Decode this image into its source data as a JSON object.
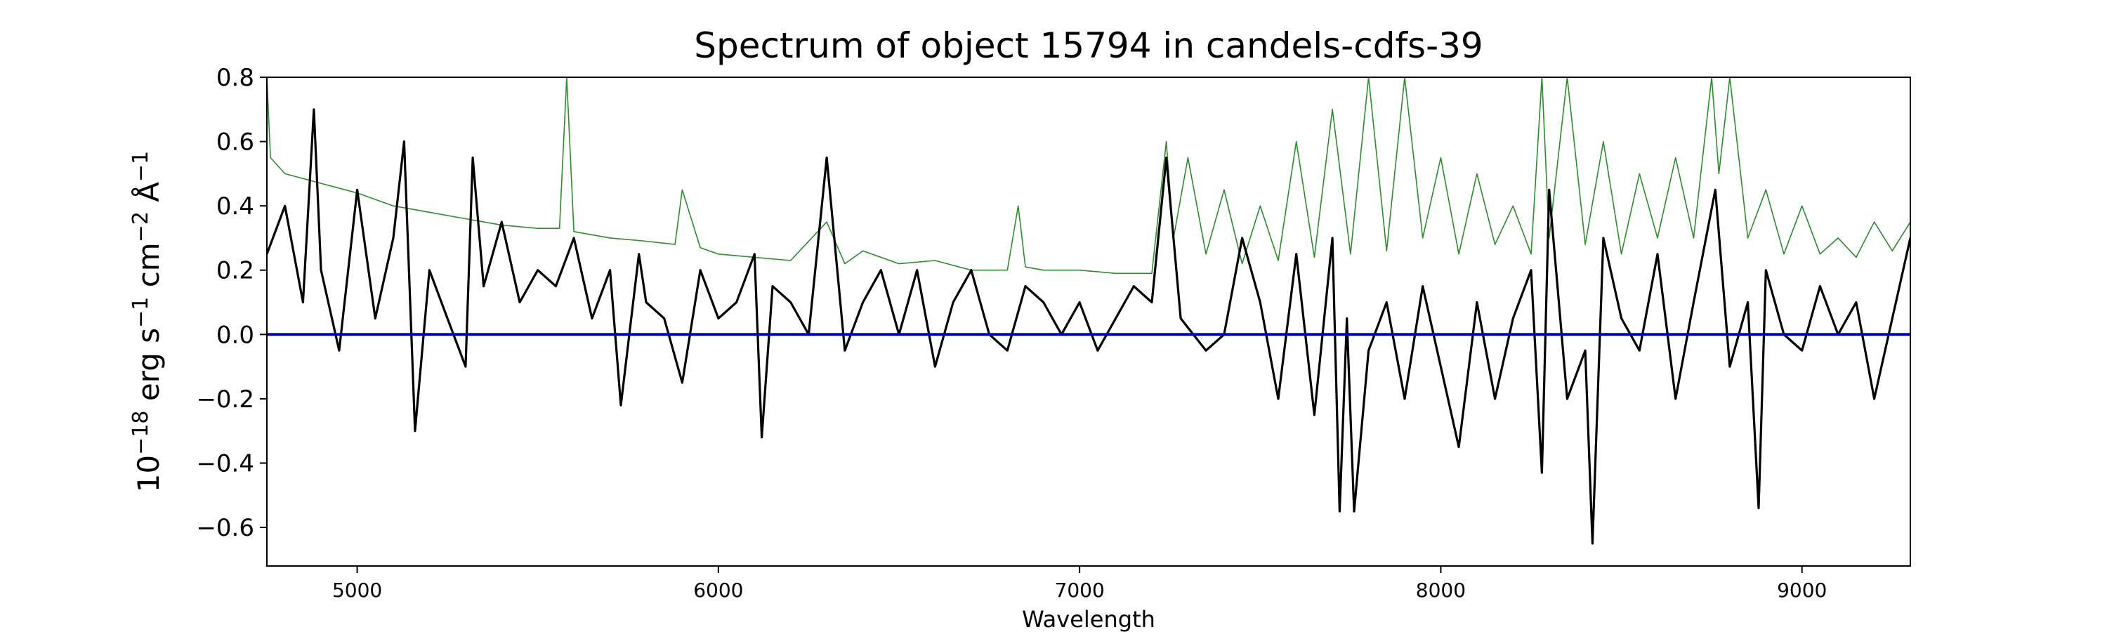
{
  "chart_data": {
    "type": "line",
    "title": "Spectrum of object 15794 in candels-cdfs-39",
    "xlabel": "Wavelength",
    "ylabel": {
      "base": "10",
      "base_exp": "−18",
      "erg": " erg s",
      "s_exp": "−1",
      "cm": " cm",
      "cm_exp": "−2",
      "ang": " Å",
      "ang_exp": "−1"
    },
    "xlim": [
      4750,
      9300
    ],
    "ylim": [
      -0.72,
      0.8
    ],
    "xticks": [
      5000,
      6000,
      7000,
      8000,
      9000
    ],
    "xtick_labels": [
      "5000",
      "6000",
      "7000",
      "8000",
      "9000"
    ],
    "yticks": [
      -0.6,
      -0.4,
      -0.2,
      0.0,
      0.2,
      0.4,
      0.6,
      0.8
    ],
    "ytick_labels": [
      "−0.6",
      "−0.4",
      "−0.2",
      "0.0",
      "0.2",
      "0.4",
      "0.6",
      "0.8"
    ],
    "grid": false,
    "legend": "none",
    "series": [
      {
        "role": "flux",
        "color": "#000000",
        "x": [
          4750,
          4800,
          4850,
          4880,
          4900,
          4950,
          5000,
          5050,
          5100,
          5130,
          5160,
          5200,
          5250,
          5300,
          5320,
          5350,
          5400,
          5450,
          5500,
          5550,
          5600,
          5650,
          5700,
          5730,
          5780,
          5800,
          5850,
          5900,
          5950,
          6000,
          6050,
          6100,
          6120,
          6150,
          6200,
          6250,
          6300,
          6350,
          6400,
          6450,
          6500,
          6550,
          6600,
          6650,
          6700,
          6750,
          6800,
          6850,
          6900,
          6950,
          7000,
          7050,
          7100,
          7150,
          7200,
          7240,
          7280,
          7350,
          7400,
          7450,
          7500,
          7550,
          7600,
          7650,
          7700,
          7720,
          7740,
          7760,
          7800,
          7850,
          7900,
          7950,
          8000,
          8050,
          8100,
          8150,
          8200,
          8250,
          8280,
          8300,
          8350,
          8400,
          8420,
          8450,
          8500,
          8550,
          8600,
          8650,
          8700,
          8760,
          8800,
          8850,
          8880,
          8900,
          8950,
          9000,
          9050,
          9100,
          9150,
          9200,
          9250,
          9300
        ],
        "y": [
          0.25,
          0.4,
          0.1,
          0.7,
          0.2,
          -0.05,
          0.45,
          0.05,
          0.3,
          0.6,
          -0.3,
          0.2,
          0.05,
          -0.1,
          0.55,
          0.15,
          0.35,
          0.1,
          0.2,
          0.15,
          0.3,
          0.05,
          0.2,
          -0.22,
          0.25,
          0.1,
          0.05,
          -0.15,
          0.2,
          0.05,
          0.1,
          0.25,
          -0.32,
          0.15,
          0.1,
          0.0,
          0.55,
          -0.05,
          0.1,
          0.2,
          0.0,
          0.2,
          -0.1,
          0.1,
          0.2,
          0.0,
          -0.05,
          0.15,
          0.1,
          0.0,
          0.1,
          -0.05,
          0.05,
          0.15,
          0.1,
          0.55,
          0.05,
          -0.05,
          0.0,
          0.3,
          0.1,
          -0.2,
          0.25,
          -0.25,
          0.3,
          -0.55,
          0.05,
          -0.55,
          -0.05,
          0.1,
          -0.2,
          0.15,
          -0.1,
          -0.35,
          0.1,
          -0.2,
          0.05,
          0.2,
          -0.43,
          0.45,
          -0.2,
          -0.05,
          -0.65,
          0.3,
          0.05,
          -0.05,
          0.25,
          -0.2,
          0.1,
          0.45,
          -0.1,
          0.1,
          -0.54,
          0.2,
          0.0,
          -0.05,
          0.15,
          0.0,
          0.1,
          -0.2,
          0.05,
          0.3
        ]
      },
      {
        "role": "error",
        "color": "#2e8b2e",
        "x": [
          4750,
          4760,
          4800,
          4900,
          5000,
          5100,
          5200,
          5300,
          5400,
          5500,
          5560,
          5580,
          5600,
          5700,
          5800,
          5880,
          5900,
          5950,
          6000,
          6100,
          6200,
          6300,
          6350,
          6400,
          6500,
          6600,
          6700,
          6800,
          6830,
          6850,
          6900,
          7000,
          7100,
          7200,
          7240,
          7260,
          7300,
          7350,
          7400,
          7450,
          7500,
          7550,
          7600,
          7650,
          7700,
          7750,
          7800,
          7850,
          7900,
          7950,
          8000,
          8050,
          8100,
          8150,
          8200,
          8250,
          8280,
          8300,
          8350,
          8400,
          8450,
          8500,
          8550,
          8600,
          8650,
          8700,
          8750,
          8770,
          8800,
          8850,
          8900,
          8950,
          9000,
          9050,
          9100,
          9150,
          9200,
          9250,
          9300
        ],
        "y": [
          0.8,
          0.55,
          0.5,
          0.47,
          0.44,
          0.4,
          0.38,
          0.36,
          0.34,
          0.33,
          0.33,
          0.8,
          0.32,
          0.3,
          0.29,
          0.28,
          0.45,
          0.27,
          0.25,
          0.24,
          0.23,
          0.35,
          0.22,
          0.26,
          0.22,
          0.23,
          0.2,
          0.2,
          0.4,
          0.21,
          0.2,
          0.2,
          0.19,
          0.19,
          0.6,
          0.3,
          0.55,
          0.25,
          0.45,
          0.22,
          0.4,
          0.23,
          0.6,
          0.24,
          0.7,
          0.25,
          0.8,
          0.26,
          0.8,
          0.3,
          0.55,
          0.25,
          0.5,
          0.28,
          0.4,
          0.25,
          0.8,
          0.3,
          0.8,
          0.28,
          0.6,
          0.25,
          0.5,
          0.3,
          0.55,
          0.3,
          0.8,
          0.5,
          0.8,
          0.3,
          0.45,
          0.25,
          0.4,
          0.25,
          0.3,
          0.24,
          0.35,
          0.26,
          0.35
        ]
      },
      {
        "role": "zero-line",
        "color": "#0000cc",
        "x": [
          4750,
          9300
        ],
        "y": [
          0.0,
          0.0
        ]
      }
    ]
  }
}
